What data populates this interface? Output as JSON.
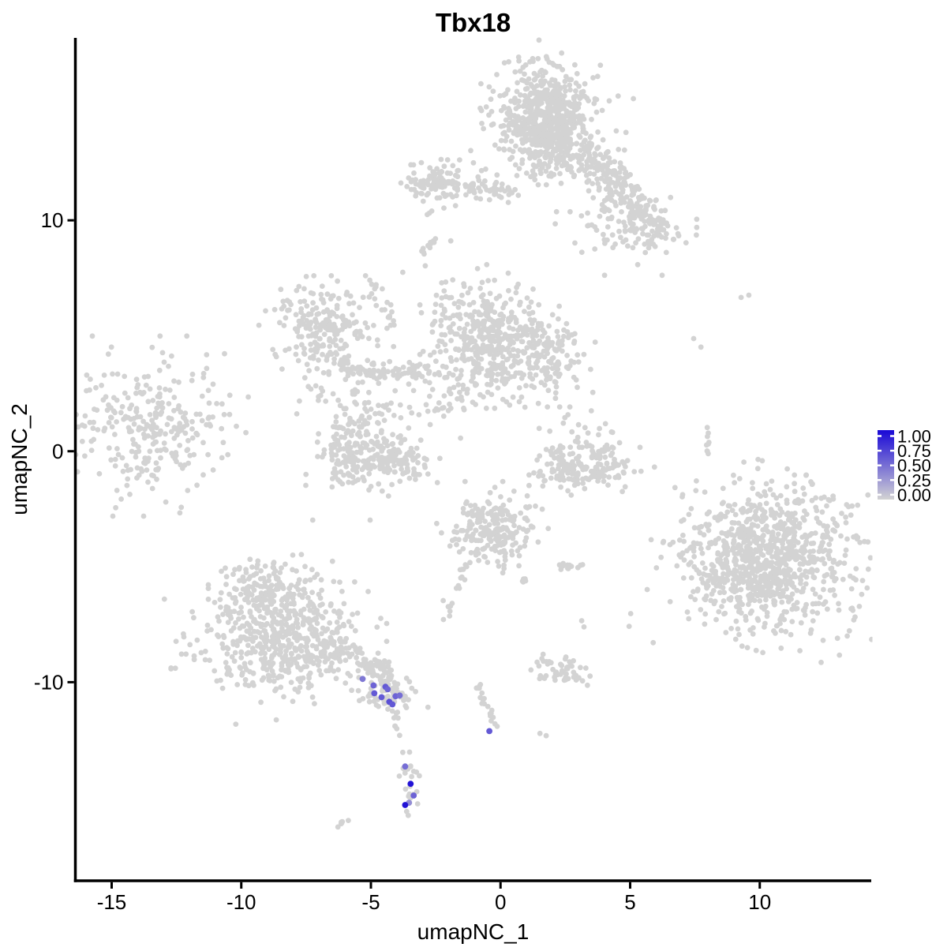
{
  "title": "Tbx18",
  "axes": {
    "x": {
      "label": "umapNC_1",
      "ticks": [
        -15,
        -10,
        -5,
        0,
        5,
        10
      ],
      "range": [
        -16.4,
        14.3
      ]
    },
    "y": {
      "label": "umapNC_2",
      "ticks": [
        10,
        0,
        -10
      ],
      "range": [
        -18.6,
        17.9
      ]
    }
  },
  "legend": {
    "labels": [
      "1.00",
      "0.75",
      "0.50",
      "0.25",
      "0.00"
    ],
    "low_color": "#D3D3D3",
    "high_color": "#1908D6"
  },
  "colors": {
    "background": "#FFFFFF",
    "axis": "#000000",
    "gray_point": "#D3D3D3"
  },
  "chart_data": {
    "type": "scatter",
    "x_range": [
      -16.4,
      14.3
    ],
    "y_range": [
      -18.6,
      17.9
    ],
    "grid": false,
    "legend_position": "right",
    "point_radius_px": 3.4,
    "clusters": [
      {
        "type": "gauss",
        "cx": 1.79,
        "cy": 14.27,
        "sx": 0.82,
        "sy": 1.05,
        "n": 560
      },
      {
        "type": "gauss",
        "cx": 1.79,
        "cy": 14.27,
        "sx": 1.3,
        "sy": 1.5,
        "n": 160
      },
      {
        "type": "strand",
        "x1": 3.04,
        "y1": 13.04,
        "mx": 4.78,
        "my": 11.43,
        "x2": 6.18,
        "y2": 9.15,
        "n": 240,
        "jitter": 0.42
      },
      {
        "type": "gauss",
        "cx": 4.84,
        "cy": 9.83,
        "sx": 1.05,
        "sy": 0.85,
        "n": 80
      },
      {
        "type": "gauss",
        "cx": -2.34,
        "cy": 11.6,
        "sx": 0.62,
        "sy": 0.52,
        "n": 110
      },
      {
        "type": "strand",
        "x1": -1.46,
        "y1": 11.37,
        "x2": 0.52,
        "y2": 11.26,
        "n": 40,
        "jitter": 0.2
      },
      {
        "type": "strand",
        "x1": -3.13,
        "y1": 8.53,
        "x2": -2.52,
        "y2": 9.11,
        "n": 12,
        "jitter": 0.07
      },
      {
        "type": "gauss",
        "cx": -6.85,
        "cy": 5.39,
        "sx": 0.95,
        "sy": 0.85,
        "n": 220
      },
      {
        "type": "strand",
        "x1": -6.48,
        "y1": 3.92,
        "mx": -4.65,
        "my": 3.14,
        "x2": -2.68,
        "y2": 3.52,
        "n": 85,
        "jitter": 0.2
      },
      {
        "type": "gauss",
        "cx": -6.11,
        "cy": 2.66,
        "sx": 0.85,
        "sy": 0.55,
        "n": 30
      },
      {
        "type": "strand",
        "x1": -4.14,
        "y1": 5.39,
        "x2": -5.02,
        "y2": 7.51,
        "n": 20,
        "jitter": 0.12
      },
      {
        "type": "gauss",
        "cx": -0.64,
        "cy": 4.85,
        "sx": 0.95,
        "sy": 1.15,
        "n": 360
      },
      {
        "type": "gauss",
        "cx": -0.64,
        "cy": 4.85,
        "sx": 1.5,
        "sy": 1.5,
        "n": 70
      },
      {
        "type": "gauss",
        "cx": 1.83,
        "cy": 4.13,
        "sx": 0.8,
        "sy": 0.85,
        "n": 160
      },
      {
        "type": "gauss",
        "cx": -2.07,
        "cy": 2.56,
        "sx": 1.05,
        "sy": 0.8,
        "n": 40
      },
      {
        "type": "gauss",
        "cx": -6.08,
        "cy": -0.27,
        "sx": 0.55,
        "sy": 0.62,
        "n": 100
      },
      {
        "type": "gauss",
        "cx": -4.29,
        "cy": -0.51,
        "sx": 0.75,
        "sy": 0.55,
        "n": 140
      },
      {
        "type": "gauss",
        "cx": -5.66,
        "cy": 1.02,
        "sx": 0.5,
        "sy": 0.42,
        "n": 45
      },
      {
        "type": "gauss",
        "cx": -4.96,
        "cy": 1.64,
        "sx": 1.1,
        "sy": 0.45,
        "n": 30
      },
      {
        "type": "gauss",
        "cx": 2.4,
        "cy": -0.51,
        "sx": 0.5,
        "sy": 0.5,
        "n": 70
      },
      {
        "type": "gauss",
        "cx": 3.99,
        "cy": -0.48,
        "sx": 0.55,
        "sy": 0.5,
        "n": 70
      },
      {
        "type": "gauss",
        "cx": 3.19,
        "cy": -1.02,
        "sx": 0.8,
        "sy": 0.35,
        "n": 55
      },
      {
        "type": "gauss",
        "cx": 3.04,
        "cy": 0.82,
        "sx": 0.9,
        "sy": 0.55,
        "n": 22
      },
      {
        "type": "gauss",
        "cx": -13.63,
        "cy": 1.09,
        "sx": 1.5,
        "sy": 1.5,
        "n": 260
      },
      {
        "type": "gauss",
        "cx": -11.8,
        "cy": 1.09,
        "sx": 0.9,
        "sy": 1.3,
        "n": 22
      },
      {
        "type": "gauss",
        "cx": 10.31,
        "cy": -4.64,
        "sx": 1.55,
        "sy": 1.5,
        "n": 820,
        "angle": -20
      },
      {
        "type": "gauss",
        "cx": 10.31,
        "cy": -4.64,
        "sx": 2.1,
        "sy": 1.9,
        "n": 110,
        "angle": -20
      },
      {
        "type": "strand",
        "x1": 7.67,
        "y1": -5.97,
        "x2": 8.88,
        "y2": -4.85,
        "n": 35,
        "jitter": 0.28
      },
      {
        "type": "gauss",
        "cx": -8.67,
        "cy": -6.21,
        "sx": 1.0,
        "sy": 0.82,
        "n": 200
      },
      {
        "type": "gauss",
        "cx": -8.55,
        "cy": -8.46,
        "sx": 1.6,
        "sy": 0.95,
        "n": 420
      },
      {
        "type": "gauss",
        "cx": -8.6,
        "cy": -7.4,
        "sx": 2.0,
        "sy": 1.7,
        "n": 70
      },
      {
        "type": "strand",
        "x1": -6.72,
        "y1": -8.26,
        "x2": -4.08,
        "y2": -9.93,
        "n": 85,
        "jitter": 0.26
      },
      {
        "type": "gauss",
        "cx": -4.41,
        "cy": -10.38,
        "sx": 0.62,
        "sy": 0.5,
        "n": 65
      },
      {
        "type": "strand",
        "x1": -4.14,
        "y1": -11.19,
        "x2": -3.95,
        "y2": -12.46,
        "n": 10,
        "jitter": 0.1
      },
      {
        "type": "gauss",
        "cx": -0.33,
        "cy": -3.34,
        "sx": 0.85,
        "sy": 0.78,
        "n": 220
      },
      {
        "type": "strand",
        "x1": -1.25,
        "y1": -4.64,
        "x2": -1.7,
        "y2": -6.01,
        "n": 11,
        "jitter": 0.07
      },
      {
        "type": "strand",
        "x1": 0.67,
        "y1": -4.95,
        "x2": 1.06,
        "y2": -5.87,
        "n": 8,
        "jitter": 0.07
      },
      {
        "type": "strand",
        "x1": 2.19,
        "y1": -4.98,
        "x2": 3.26,
        "y2": -4.91,
        "n": 13,
        "jitter": 0.08
      },
      {
        "type": "gauss",
        "cx": -2.01,
        "cy": -6.93,
        "sx": 0.12,
        "sy": 0.38,
        "n": 7
      },
      {
        "type": "gauss",
        "cx": 2.4,
        "cy": -9.56,
        "sx": 0.52,
        "sy": 0.3,
        "n": 55,
        "angle": -15
      },
      {
        "type": "strand",
        "x1": -0.88,
        "y1": -9.97,
        "mx": -0.7,
        "my": -11.09,
        "x2": 0.0,
        "y2": -11.95,
        "n": 20,
        "jitter": 0.07
      },
      {
        "type": "gauss",
        "cx": -3.47,
        "cy": -14.33,
        "sx": 0.2,
        "sy": 0.55,
        "n": 22
      },
      {
        "type": "strand",
        "x1": -6.24,
        "y1": -16.28,
        "x2": -5.87,
        "y2": -15.94,
        "n": 7,
        "jitter": 0.05
      },
      {
        "type": "strand",
        "x1": 8.03,
        "y1": 0.92,
        "x2": 7.94,
        "y2": -0.51,
        "n": 9,
        "jitter": 0.06
      },
      {
        "type": "dots",
        "pts": [
          [
            3.13,
            -7.34
          ],
          [
            3.22,
            -7.61
          ],
          [
            5.02,
            -7.03
          ],
          [
            4.96,
            -7.58
          ],
          [
            1.52,
            -12.22
          ],
          [
            1.76,
            -12.32
          ],
          [
            -3.77,
            -13.04
          ],
          [
            -3.62,
            -15.6
          ],
          [
            -3.56,
            -15.77
          ],
          [
            -3.23,
            -14.74
          ],
          [
            7.88,
            -1.77
          ],
          [
            7.45,
            4.88
          ],
          [
            7.73,
            4.51
          ],
          [
            9.28,
            6.66
          ],
          [
            9.58,
            6.76
          ],
          [
            -1.92,
            9.11
          ],
          [
            -3.77,
            7.75
          ]
        ]
      }
    ],
    "expressing_points": [
      {
        "x": -5.32,
        "y": -9.86,
        "value": 0.45
      },
      {
        "x": -4.9,
        "y": -10.14,
        "value": 0.55
      },
      {
        "x": -4.87,
        "y": -10.48,
        "value": 0.6
      },
      {
        "x": -4.59,
        "y": -10.65,
        "value": 0.6
      },
      {
        "x": -4.44,
        "y": -10.2,
        "value": 0.6
      },
      {
        "x": -4.35,
        "y": -10.31,
        "value": 0.55
      },
      {
        "x": -4.29,
        "y": -10.85,
        "value": 0.65
      },
      {
        "x": -4.17,
        "y": -10.96,
        "value": 0.6
      },
      {
        "x": -4.05,
        "y": -10.61,
        "value": 0.55
      },
      {
        "x": -3.89,
        "y": -10.58,
        "value": 0.5
      },
      {
        "x": -0.43,
        "y": -12.12,
        "value": 0.6
      },
      {
        "x": -3.68,
        "y": -13.65,
        "value": 0.5
      },
      {
        "x": -3.47,
        "y": -14.4,
        "value": 0.95
      },
      {
        "x": -3.35,
        "y": -14.91,
        "value": 0.55
      },
      {
        "x": -3.53,
        "y": -15.22,
        "value": 0.35
      },
      {
        "x": -3.68,
        "y": -15.32,
        "value": 0.95
      }
    ]
  }
}
